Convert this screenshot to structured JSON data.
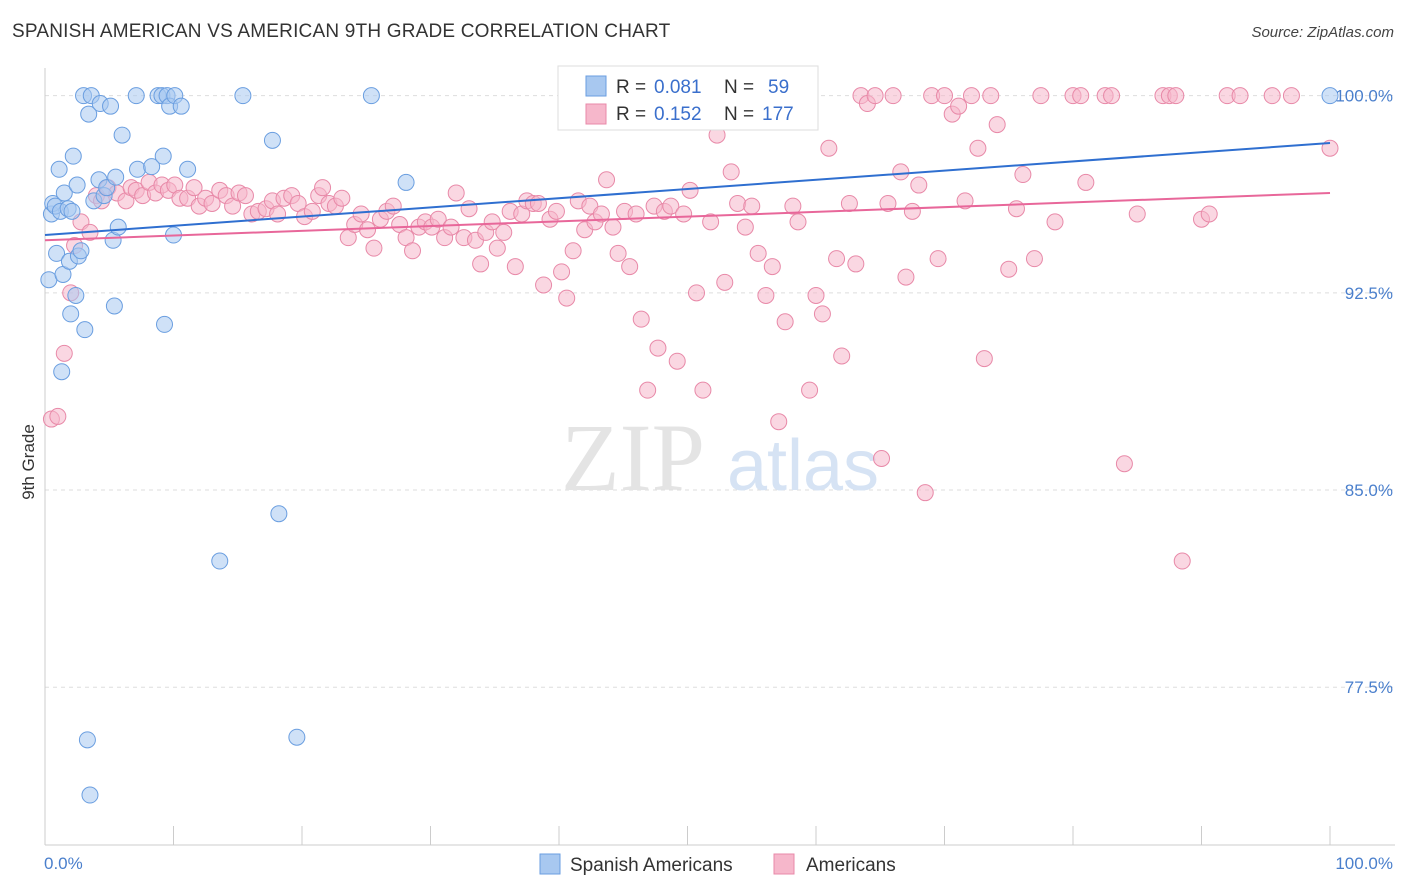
{
  "title": "SPANISH AMERICAN VS AMERICAN 9TH GRADE CORRELATION CHART",
  "source": "Source: ZipAtlas.com",
  "watermark": {
    "zip": "ZIP",
    "atlas": "atlas"
  },
  "colors": {
    "blue_fill": "#a8c8f0",
    "blue_stroke": "#6a9ee0",
    "blue_line": "#2f6fd0",
    "pink_fill": "#f6b7cb",
    "pink_stroke": "#e889a8",
    "pink_line": "#e8679a",
    "tick_text": "#4a7fcc",
    "grid": "#dddddd"
  },
  "legend": {
    "rows": [
      {
        "r_label": "R =",
        "r_value": "0.081",
        "n_label": "N =",
        "n_value": "59"
      },
      {
        "r_label": "R =",
        "r_value": "0.152",
        "n_label": "N =",
        "n_value": "177"
      }
    ]
  },
  "bottom_legend": {
    "items": [
      "Spanish Americans",
      "Americans"
    ]
  },
  "chart_data": {
    "type": "scatter",
    "title": "SPANISH AMERICAN VS AMERICAN 9TH GRADE CORRELATION CHART",
    "xlabel": "",
    "ylabel": "9th Grade",
    "xlim": [
      0,
      100
    ],
    "ylim": [
      71.5,
      100.9
    ],
    "x_tick_labels": {
      "left": "0.0%",
      "right": "100.0%"
    },
    "y_ticks": [
      {
        "value": 100.0,
        "label": "100.0%"
      },
      {
        "value": 92.5,
        "label": "92.5%"
      },
      {
        "value": 85.0,
        "label": "85.0%"
      },
      {
        "value": 77.5,
        "label": "77.5%"
      }
    ],
    "grid": true,
    "legend_position": "top-center",
    "series": [
      {
        "name": "Spanish Americans",
        "color": "#a8c8f0",
        "trend": {
          "x": [
            0,
            100
          ],
          "y": [
            94.7,
            98.2
          ]
        },
        "points": [
          [
            0.3,
            93.0
          ],
          [
            0.5,
            95.5
          ],
          [
            0.6,
            95.9
          ],
          [
            0.8,
            95.8
          ],
          [
            0.9,
            94.0
          ],
          [
            1.1,
            97.2
          ],
          [
            1.2,
            95.6
          ],
          [
            1.3,
            89.5
          ],
          [
            1.4,
            93.2
          ],
          [
            1.5,
            96.3
          ],
          [
            1.8,
            95.7
          ],
          [
            1.9,
            93.7
          ],
          [
            2.0,
            91.7
          ],
          [
            2.1,
            95.6
          ],
          [
            2.2,
            97.7
          ],
          [
            2.4,
            92.4
          ],
          [
            2.5,
            96.6
          ],
          [
            2.6,
            93.9
          ],
          [
            2.8,
            94.1
          ],
          [
            3.1,
            91.1
          ],
          [
            3.0,
            100.0
          ],
          [
            3.3,
            75.5
          ],
          [
            3.4,
            99.3
          ],
          [
            3.5,
            73.4
          ],
          [
            3.6,
            100.0
          ],
          [
            3.8,
            96.0
          ],
          [
            4.2,
            96.8
          ],
          [
            4.3,
            99.7
          ],
          [
            4.6,
            96.2
          ],
          [
            4.8,
            96.5
          ],
          [
            5.1,
            99.6
          ],
          [
            5.3,
            94.5
          ],
          [
            5.4,
            92.0
          ],
          [
            5.5,
            96.9
          ],
          [
            5.7,
            95.0
          ],
          [
            6.0,
            98.5
          ],
          [
            7.2,
            97.2
          ],
          [
            7.1,
            100.0
          ],
          [
            8.3,
            97.3
          ],
          [
            8.8,
            100.0
          ],
          [
            9.1,
            100.0
          ],
          [
            9.2,
            97.7
          ],
          [
            9.3,
            91.3
          ],
          [
            9.5,
            100.0
          ],
          [
            9.7,
            99.6
          ],
          [
            10.0,
            94.7
          ],
          [
            10.1,
            100.0
          ],
          [
            10.6,
            99.6
          ],
          [
            11.1,
            97.2
          ],
          [
            13.6,
            82.3
          ],
          [
            15.4,
            100.0
          ],
          [
            17.7,
            98.3
          ],
          [
            18.2,
            84.1
          ],
          [
            19.6,
            75.6
          ],
          [
            25.4,
            100.0
          ],
          [
            28.1,
            96.7
          ],
          [
            100.0,
            100.0
          ]
        ]
      },
      {
        "name": "Americans",
        "color": "#f6b7cb",
        "trend": {
          "x": [
            0,
            100
          ],
          "y": [
            94.5,
            96.3
          ]
        },
        "points": [
          [
            0.5,
            87.7
          ],
          [
            1.0,
            87.8
          ],
          [
            1.5,
            90.2
          ],
          [
            2.0,
            92.5
          ],
          [
            2.3,
            94.3
          ],
          [
            2.8,
            95.2
          ],
          [
            3.5,
            94.8
          ],
          [
            4.0,
            96.2
          ],
          [
            4.4,
            96.0
          ],
          [
            4.9,
            96.5
          ],
          [
            5.6,
            96.3
          ],
          [
            6.3,
            96.0
          ],
          [
            6.7,
            96.5
          ],
          [
            7.1,
            96.4
          ],
          [
            7.6,
            96.2
          ],
          [
            8.1,
            96.7
          ],
          [
            8.6,
            96.3
          ],
          [
            9.1,
            96.6
          ],
          [
            9.6,
            96.4
          ],
          [
            10.1,
            96.6
          ],
          [
            10.5,
            96.1
          ],
          [
            11.1,
            96.1
          ],
          [
            11.6,
            96.5
          ],
          [
            12.0,
            95.8
          ],
          [
            12.5,
            96.1
          ],
          [
            13.0,
            95.9
          ],
          [
            13.6,
            96.4
          ],
          [
            14.1,
            96.2
          ],
          [
            14.6,
            95.8
          ],
          [
            15.1,
            96.3
          ],
          [
            15.6,
            96.2
          ],
          [
            16.1,
            95.5
          ],
          [
            16.6,
            95.6
          ],
          [
            17.2,
            95.7
          ],
          [
            17.7,
            96.0
          ],
          [
            18.1,
            95.5
          ],
          [
            18.6,
            96.1
          ],
          [
            19.2,
            96.2
          ],
          [
            19.7,
            95.9
          ],
          [
            20.2,
            95.4
          ],
          [
            20.8,
            95.6
          ],
          [
            21.3,
            96.2
          ],
          [
            21.6,
            96.5
          ],
          [
            22.1,
            95.9
          ],
          [
            22.6,
            95.8
          ],
          [
            23.1,
            96.1
          ],
          [
            23.6,
            94.6
          ],
          [
            24.1,
            95.1
          ],
          [
            24.6,
            95.5
          ],
          [
            25.1,
            94.9
          ],
          [
            25.6,
            94.2
          ],
          [
            26.1,
            95.3
          ],
          [
            26.6,
            95.6
          ],
          [
            27.1,
            95.8
          ],
          [
            27.6,
            95.1
          ],
          [
            28.1,
            94.6
          ],
          [
            28.6,
            94.1
          ],
          [
            29.1,
            95.0
          ],
          [
            29.6,
            95.2
          ],
          [
            30.1,
            95.0
          ],
          [
            30.6,
            95.3
          ],
          [
            31.1,
            94.6
          ],
          [
            31.6,
            95.0
          ],
          [
            32.0,
            96.3
          ],
          [
            32.6,
            94.6
          ],
          [
            33.0,
            95.7
          ],
          [
            33.5,
            94.5
          ],
          [
            33.9,
            93.6
          ],
          [
            34.3,
            94.8
          ],
          [
            34.8,
            95.2
          ],
          [
            35.2,
            94.2
          ],
          [
            35.7,
            94.8
          ],
          [
            36.2,
            95.6
          ],
          [
            36.6,
            93.5
          ],
          [
            37.1,
            95.5
          ],
          [
            37.5,
            96.0
          ],
          [
            38.0,
            95.9
          ],
          [
            38.4,
            95.9
          ],
          [
            38.8,
            92.8
          ],
          [
            39.3,
            95.3
          ],
          [
            39.8,
            95.6
          ],
          [
            40.2,
            93.3
          ],
          [
            40.6,
            92.3
          ],
          [
            41.1,
            94.1
          ],
          [
            41.5,
            96.0
          ],
          [
            42.0,
            94.9
          ],
          [
            42.4,
            95.8
          ],
          [
            42.8,
            95.2
          ],
          [
            43.3,
            95.5
          ],
          [
            43.7,
            96.8
          ],
          [
            44.2,
            95.0
          ],
          [
            44.6,
            94.0
          ],
          [
            45.1,
            95.6
          ],
          [
            45.5,
            93.5
          ],
          [
            46.0,
            95.5
          ],
          [
            46.4,
            91.5
          ],
          [
            46.9,
            88.8
          ],
          [
            47.4,
            95.8
          ],
          [
            47.7,
            90.4
          ],
          [
            48.2,
            95.6
          ],
          [
            48.7,
            95.8
          ],
          [
            49.2,
            89.9
          ],
          [
            49.7,
            95.5
          ],
          [
            50.2,
            96.4
          ],
          [
            50.7,
            92.5
          ],
          [
            51.2,
            88.8
          ],
          [
            51.8,
            95.2
          ],
          [
            52.3,
            98.5
          ],
          [
            52.9,
            92.9
          ],
          [
            53.4,
            97.1
          ],
          [
            53.9,
            95.9
          ],
          [
            54.5,
            95.0
          ],
          [
            55.0,
            95.8
          ],
          [
            55.5,
            94.0
          ],
          [
            56.1,
            92.4
          ],
          [
            56.6,
            93.5
          ],
          [
            57.1,
            87.6
          ],
          [
            57.6,
            91.4
          ],
          [
            58.2,
            95.8
          ],
          [
            58.6,
            95.2
          ],
          [
            59.2,
            100.0
          ],
          [
            59.5,
            88.8
          ],
          [
            60.0,
            92.4
          ],
          [
            60.5,
            91.7
          ],
          [
            61.0,
            98.0
          ],
          [
            61.6,
            93.8
          ],
          [
            62.0,
            90.1
          ],
          [
            62.6,
            95.9
          ],
          [
            63.1,
            93.6
          ],
          [
            63.5,
            100.0
          ],
          [
            64.0,
            99.7
          ],
          [
            64.6,
            100.0
          ],
          [
            65.1,
            86.2
          ],
          [
            65.6,
            95.9
          ],
          [
            66.0,
            100.0
          ],
          [
            66.6,
            97.1
          ],
          [
            67.0,
            93.1
          ],
          [
            67.5,
            95.6
          ],
          [
            68.0,
            96.6
          ],
          [
            68.5,
            84.9
          ],
          [
            69.0,
            100.0
          ],
          [
            69.5,
            93.8
          ],
          [
            70.0,
            100.0
          ],
          [
            70.6,
            99.3
          ],
          [
            71.1,
            99.6
          ],
          [
            71.6,
            96.0
          ],
          [
            72.1,
            100.0
          ],
          [
            72.6,
            98.0
          ],
          [
            73.1,
            90.0
          ],
          [
            73.6,
            100.0
          ],
          [
            74.1,
            98.9
          ],
          [
            75.0,
            93.4
          ],
          [
            75.6,
            95.7
          ],
          [
            76.1,
            97.0
          ],
          [
            77.0,
            93.8
          ],
          [
            77.5,
            100.0
          ],
          [
            78.6,
            95.2
          ],
          [
            80.0,
            100.0
          ],
          [
            80.6,
            100.0
          ],
          [
            81.0,
            96.7
          ],
          [
            82.5,
            100.0
          ],
          [
            83.0,
            100.0
          ],
          [
            84.0,
            86.0
          ],
          [
            85.0,
            95.5
          ],
          [
            87.0,
            100.0
          ],
          [
            87.5,
            100.0
          ],
          [
            88.0,
            100.0
          ],
          [
            88.5,
            82.3
          ],
          [
            90.0,
            95.3
          ],
          [
            90.6,
            95.5
          ],
          [
            92.0,
            100.0
          ],
          [
            93.0,
            100.0
          ],
          [
            95.5,
            100.0
          ],
          [
            97.0,
            100.0
          ],
          [
            100.0,
            98.0
          ]
        ]
      }
    ]
  }
}
